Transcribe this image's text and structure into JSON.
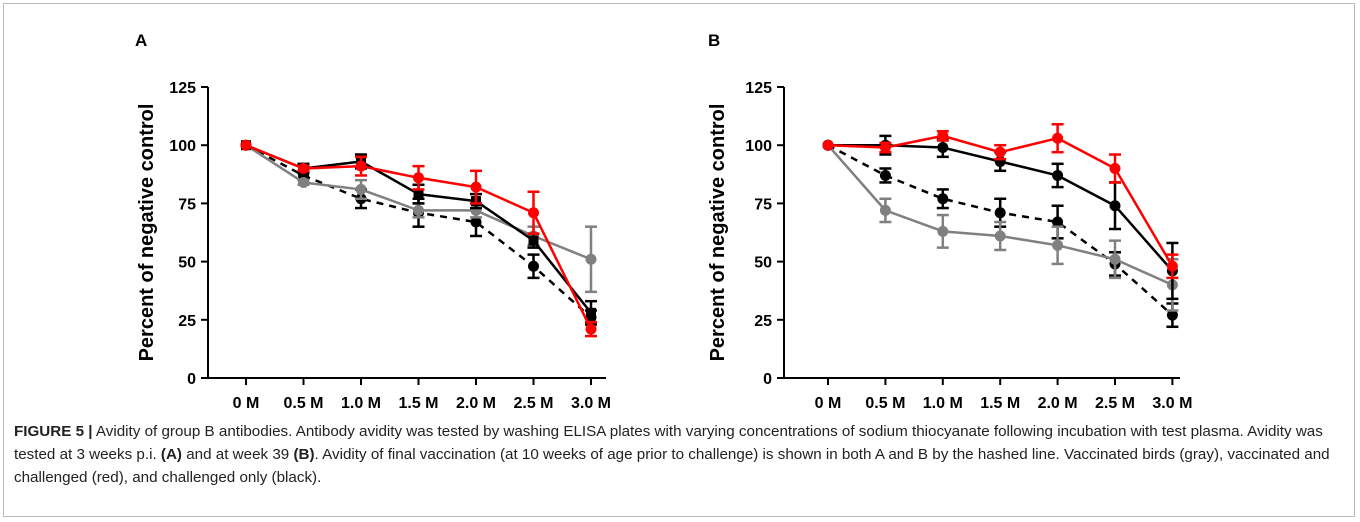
{
  "caption": {
    "segments": [
      {
        "text": "FIGURE 5 |",
        "bold": true
      },
      {
        "text": " Avidity of group B antibodies. Antibody avidity was tested by washing ELISA plates with varying concentrations of sodium thiocyanate following incubation with test plasma. Avidity was tested at 3 weeks p.i. ",
        "bold": false
      },
      {
        "text": "(A)",
        "bold": true
      },
      {
        "text": " and at week 39 ",
        "bold": false
      },
      {
        "text": "(B)",
        "bold": true
      },
      {
        "text": ". Avidity of final vaccination (at 10 weeks of age prior to challenge) is shown in both A and B by the hashed line. Vaccinated birds (gray), vaccinated and challenged (red), and challenged only (black).",
        "bold": false
      }
    ]
  },
  "chart_data": [
    {
      "panel": "A",
      "type": "line",
      "categories": [
        "0 M",
        "0.5 M",
        "1.0 M",
        "1.5 M",
        "2.0 M",
        "2.5 M",
        "3.0 M"
      ],
      "ylabel": "Percent of negative control",
      "xlabel": "",
      "ylim": [
        0,
        125
      ],
      "yticks": [
        0,
        25,
        50,
        75,
        100,
        125
      ],
      "series": [
        {
          "color": "#000000",
          "dashed": true,
          "marker": "circle",
          "values": [
            100,
            87,
            77,
            71,
            67,
            48,
            26
          ],
          "errors": [
            0,
            2,
            4,
            6,
            6,
            5,
            3
          ]
        },
        {
          "color": "#808080",
          "dashed": false,
          "marker": "circle",
          "values": [
            100,
            84,
            81,
            72,
            72,
            61,
            51
          ],
          "errors": [
            0,
            1,
            4,
            3,
            3,
            4,
            14
          ]
        },
        {
          "color": "#000000",
          "dashed": false,
          "marker": "square",
          "values": [
            100,
            90,
            93,
            79,
            76,
            59,
            28
          ],
          "errors": [
            0,
            2,
            3,
            4,
            3,
            3,
            5
          ]
        },
        {
          "color": "#ff0000",
          "dashed": false,
          "marker": "circle",
          "values": [
            100,
            90,
            91,
            86,
            82,
            71,
            21
          ],
          "errors": [
            0,
            1,
            4,
            5,
            7,
            9,
            3
          ]
        }
      ]
    },
    {
      "panel": "B",
      "type": "line",
      "categories": [
        "0 M",
        "0.5 M",
        "1.0 M",
        "1.5 M",
        "2.0 M",
        "2.5 M",
        "3.0 M"
      ],
      "ylabel": "Percent of negative control",
      "xlabel": "",
      "ylim": [
        0,
        125
      ],
      "yticks": [
        0,
        25,
        50,
        75,
        100,
        125
      ],
      "series": [
        {
          "color": "#000000",
          "dashed": true,
          "marker": "circle",
          "values": [
            100,
            87,
            77,
            71,
            67,
            49,
            27
          ],
          "errors": [
            0,
            3,
            4,
            6,
            7,
            5,
            5
          ]
        },
        {
          "color": "#808080",
          "dashed": false,
          "marker": "circle",
          "values": [
            100,
            72,
            63,
            61,
            57,
            51,
            40
          ],
          "errors": [
            0,
            5,
            7,
            6,
            8,
            8,
            11
          ]
        },
        {
          "color": "#000000",
          "dashed": false,
          "marker": "circle",
          "values": [
            100,
            100,
            99,
            93,
            87,
            74,
            46
          ],
          "errors": [
            0,
            4,
            4,
            4,
            5,
            10,
            12
          ]
        },
        {
          "color": "#ff0000",
          "dashed": false,
          "marker": "circle",
          "values": [
            100,
            99,
            104,
            97,
            103,
            90,
            48
          ],
          "errors": [
            0,
            2,
            2,
            3,
            6,
            6,
            5
          ]
        }
      ]
    }
  ]
}
